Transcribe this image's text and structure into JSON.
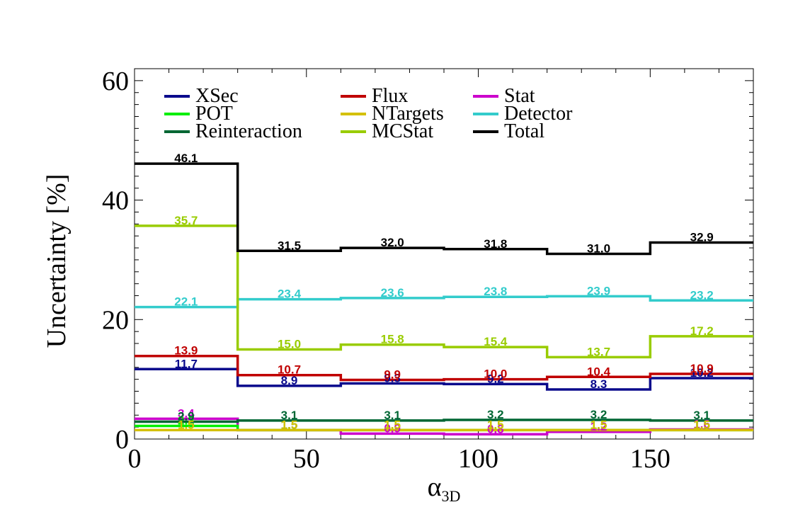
{
  "chart_data": {
    "type": "line",
    "step": true,
    "xlabel": "α",
    "xlabel_sub": "3D",
    "ylabel": "Uncertainty [%]",
    "xlim": [
      0,
      180
    ],
    "ylim": [
      0,
      62
    ],
    "bin_edges": [
      0,
      30,
      60,
      90,
      120,
      150,
      180
    ],
    "x_ticks": [
      "0",
      "50",
      "100",
      "150"
    ],
    "y_ticks": [
      "0",
      "20",
      "40",
      "60"
    ],
    "legend_position": "top-left",
    "legend_columns": 3,
    "series": [
      {
        "name": "XSec",
        "color": "#0a0a8c",
        "values": [
          11.7,
          8.9,
          9.3,
          9.2,
          8.3,
          10.2
        ],
        "labels": [
          "11.7",
          "8.9",
          "9.3",
          "9.2",
          "8.3",
          "10.2"
        ]
      },
      {
        "name": "Flux",
        "color": "#c00000",
        "values": [
          13.9,
          10.7,
          9.9,
          10.0,
          10.4,
          10.9
        ],
        "labels": [
          "13.9",
          "10.7",
          "9.9",
          "10.0",
          "10.4",
          "10.9"
        ]
      },
      {
        "name": "Stat",
        "color": "#cc00cc",
        "values": [
          3.4,
          1.5,
          0.9,
          0.8,
          1.2,
          1.6
        ],
        "labels": [
          "3.4",
          "1.5",
          "0.9",
          "0.8",
          "1.2",
          "1.6"
        ]
      },
      {
        "name": "POT",
        "color": "#00ee00",
        "values": [
          2.2,
          1.5,
          1.5,
          1.5,
          1.5,
          1.5
        ],
        "labels": [
          "2.2",
          "1.5",
          "1.5",
          "1.5",
          "1.5",
          "1.5"
        ]
      },
      {
        "name": "NTargets",
        "color": "#d4c000",
        "values": [
          1.5,
          1.5,
          1.5,
          1.5,
          1.5,
          1.5
        ],
        "labels": [
          "1.5",
          "1.5",
          "1.5",
          "1.5",
          "1.5",
          "1.5"
        ]
      },
      {
        "name": "Detector",
        "color": "#33cccc",
        "values": [
          22.1,
          23.4,
          23.6,
          23.8,
          23.9,
          23.2
        ],
        "labels": [
          "22.1",
          "23.4",
          "23.6",
          "23.8",
          "23.9",
          "23.2"
        ]
      },
      {
        "name": "Reinteraction",
        "color": "#006633",
        "values": [
          2.9,
          3.1,
          3.1,
          3.2,
          3.2,
          3.1
        ],
        "labels": [
          "2.9",
          "3.1",
          "3.1",
          "3.2",
          "3.2",
          "3.1"
        ]
      },
      {
        "name": "MCStat",
        "color": "#99cc00",
        "values": [
          35.7,
          15.0,
          15.8,
          15.4,
          13.7,
          17.2
        ],
        "labels": [
          "35.7",
          "15.0",
          "15.8",
          "15.4",
          "13.7",
          "17.2"
        ]
      },
      {
        "name": "Total",
        "color": "#000000",
        "values": [
          46.1,
          31.5,
          32.0,
          31.8,
          31.0,
          32.9
        ],
        "labels": [
          "46.1",
          "31.5",
          "32.0",
          "31.8",
          "31.0",
          "32.9"
        ]
      }
    ]
  }
}
